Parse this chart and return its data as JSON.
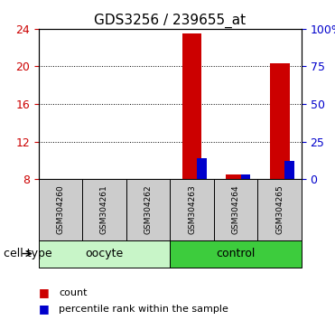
{
  "title": "GDS3256 / 239655_at",
  "samples": [
    "GSM304260",
    "GSM304261",
    "GSM304262",
    "GSM304263",
    "GSM304264",
    "GSM304265"
  ],
  "count_values": [
    8.0,
    8.0,
    8.0,
    23.5,
    8.5,
    20.3
  ],
  "percentile_values": [
    0,
    0,
    0,
    14,
    3,
    12
  ],
  "ylim_left": [
    8,
    24
  ],
  "ylim_right": [
    0,
    100
  ],
  "yticks_left": [
    8,
    12,
    16,
    20,
    24
  ],
  "yticks_right": [
    0,
    25,
    50,
    75,
    100
  ],
  "ytick_labels_right": [
    "0",
    "25",
    "50",
    "75",
    "100%"
  ],
  "groups": [
    {
      "label": "oocyte",
      "indices": [
        0,
        1,
        2
      ],
      "color": "#c8f5c8"
    },
    {
      "label": "control",
      "indices": [
        3,
        4,
        5
      ],
      "color": "#3dcc3d"
    }
  ],
  "count_color": "#cc0000",
  "percentile_color": "#0000cc",
  "tick_label_color_left": "#cc0000",
  "tick_label_color_right": "#0000cc",
  "cell_type_label": "cell type",
  "legend_count": "count",
  "legend_percentile": "percentile rank within the sample",
  "title_fontsize": 11,
  "axis_fontsize": 9,
  "label_fontsize": 9,
  "sample_fontsize": 6.5,
  "legend_fontsize": 8
}
